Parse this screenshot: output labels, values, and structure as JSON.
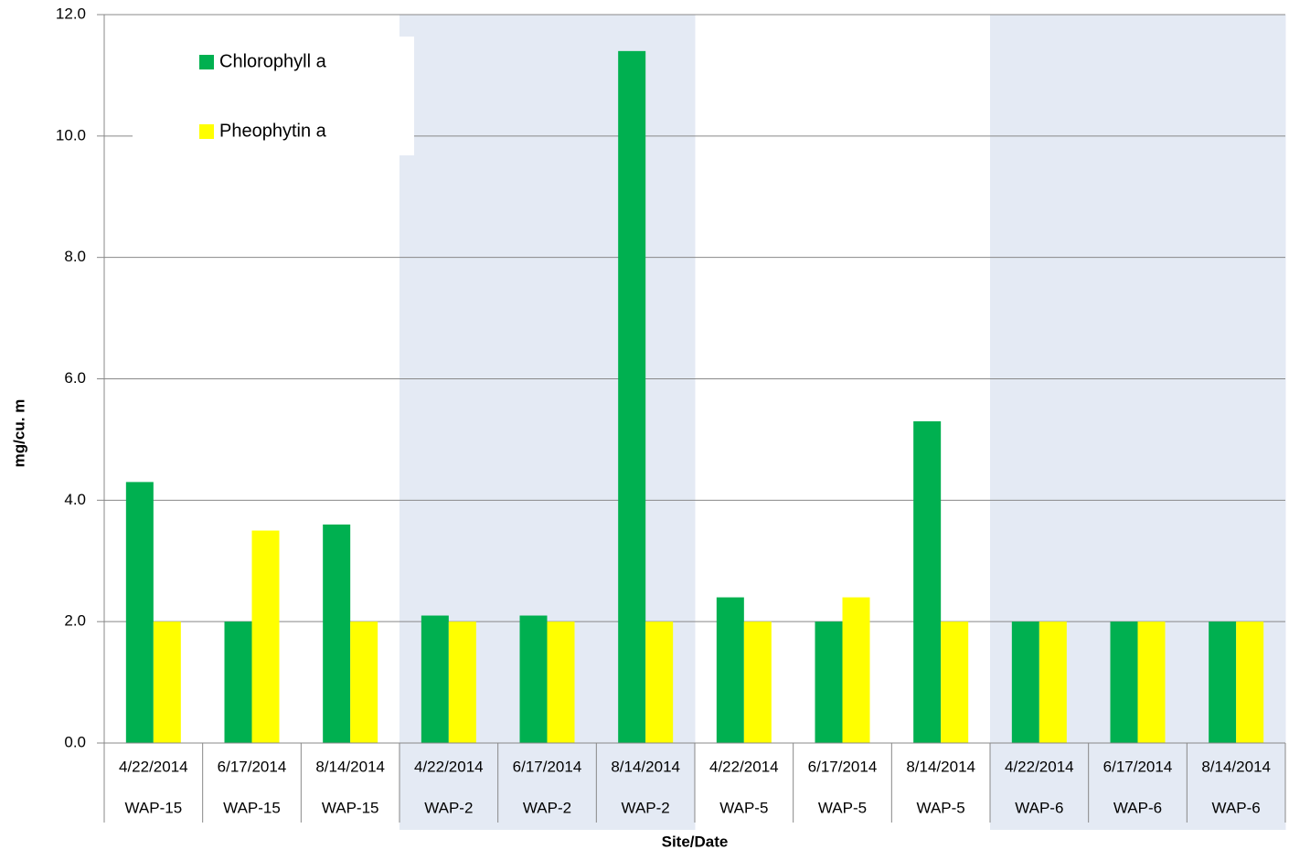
{
  "chart_data": {
    "type": "bar",
    "x_label": "Site/Date",
    "y_label": "mg/cu. m",
    "categories": [
      "4/22/2014",
      "6/17/2014",
      "8/14/2014",
      "4/22/2014",
      "6/17/2014",
      "8/14/2014",
      "4/22/2014",
      "6/17/2014",
      "8/14/2014",
      "4/22/2014",
      "6/17/2014",
      "8/14/2014"
    ],
    "groups": [
      "WAP-15",
      "WAP-15",
      "WAP-15",
      "WAP-2",
      "WAP-2",
      "WAP-2",
      "WAP-5",
      "WAP-5",
      "WAP-5",
      "WAP-6",
      "WAP-6",
      "WAP-6"
    ],
    "series": [
      {
        "name": "Chlorophyll a",
        "color": "#00b050",
        "values": [
          4.3,
          2.0,
          3.6,
          2.1,
          2.1,
          11.4,
          2.4,
          2.0,
          5.3,
          2.0,
          2.0,
          2.0
        ]
      },
      {
        "name": "Pheophytin a",
        "color": "#ffff00",
        "values": [
          2.0,
          3.5,
          2.0,
          2.0,
          2.0,
          2.0,
          2.0,
          2.4,
          2.0,
          2.0,
          2.0,
          2.0
        ]
      }
    ],
    "ylim": [
      0,
      12
    ],
    "yticks": [
      {
        "value": 0,
        "label": "0.0"
      },
      {
        "value": 2,
        "label": "2.0"
      },
      {
        "value": 4,
        "label": "4.0"
      },
      {
        "value": 6,
        "label": "6.0"
      },
      {
        "value": 8,
        "label": "8.0"
      },
      {
        "value": 10,
        "label": "10.0"
      },
      {
        "value": 12,
        "label": "12.0"
      }
    ],
    "grid": true,
    "legend": "upper left"
  }
}
